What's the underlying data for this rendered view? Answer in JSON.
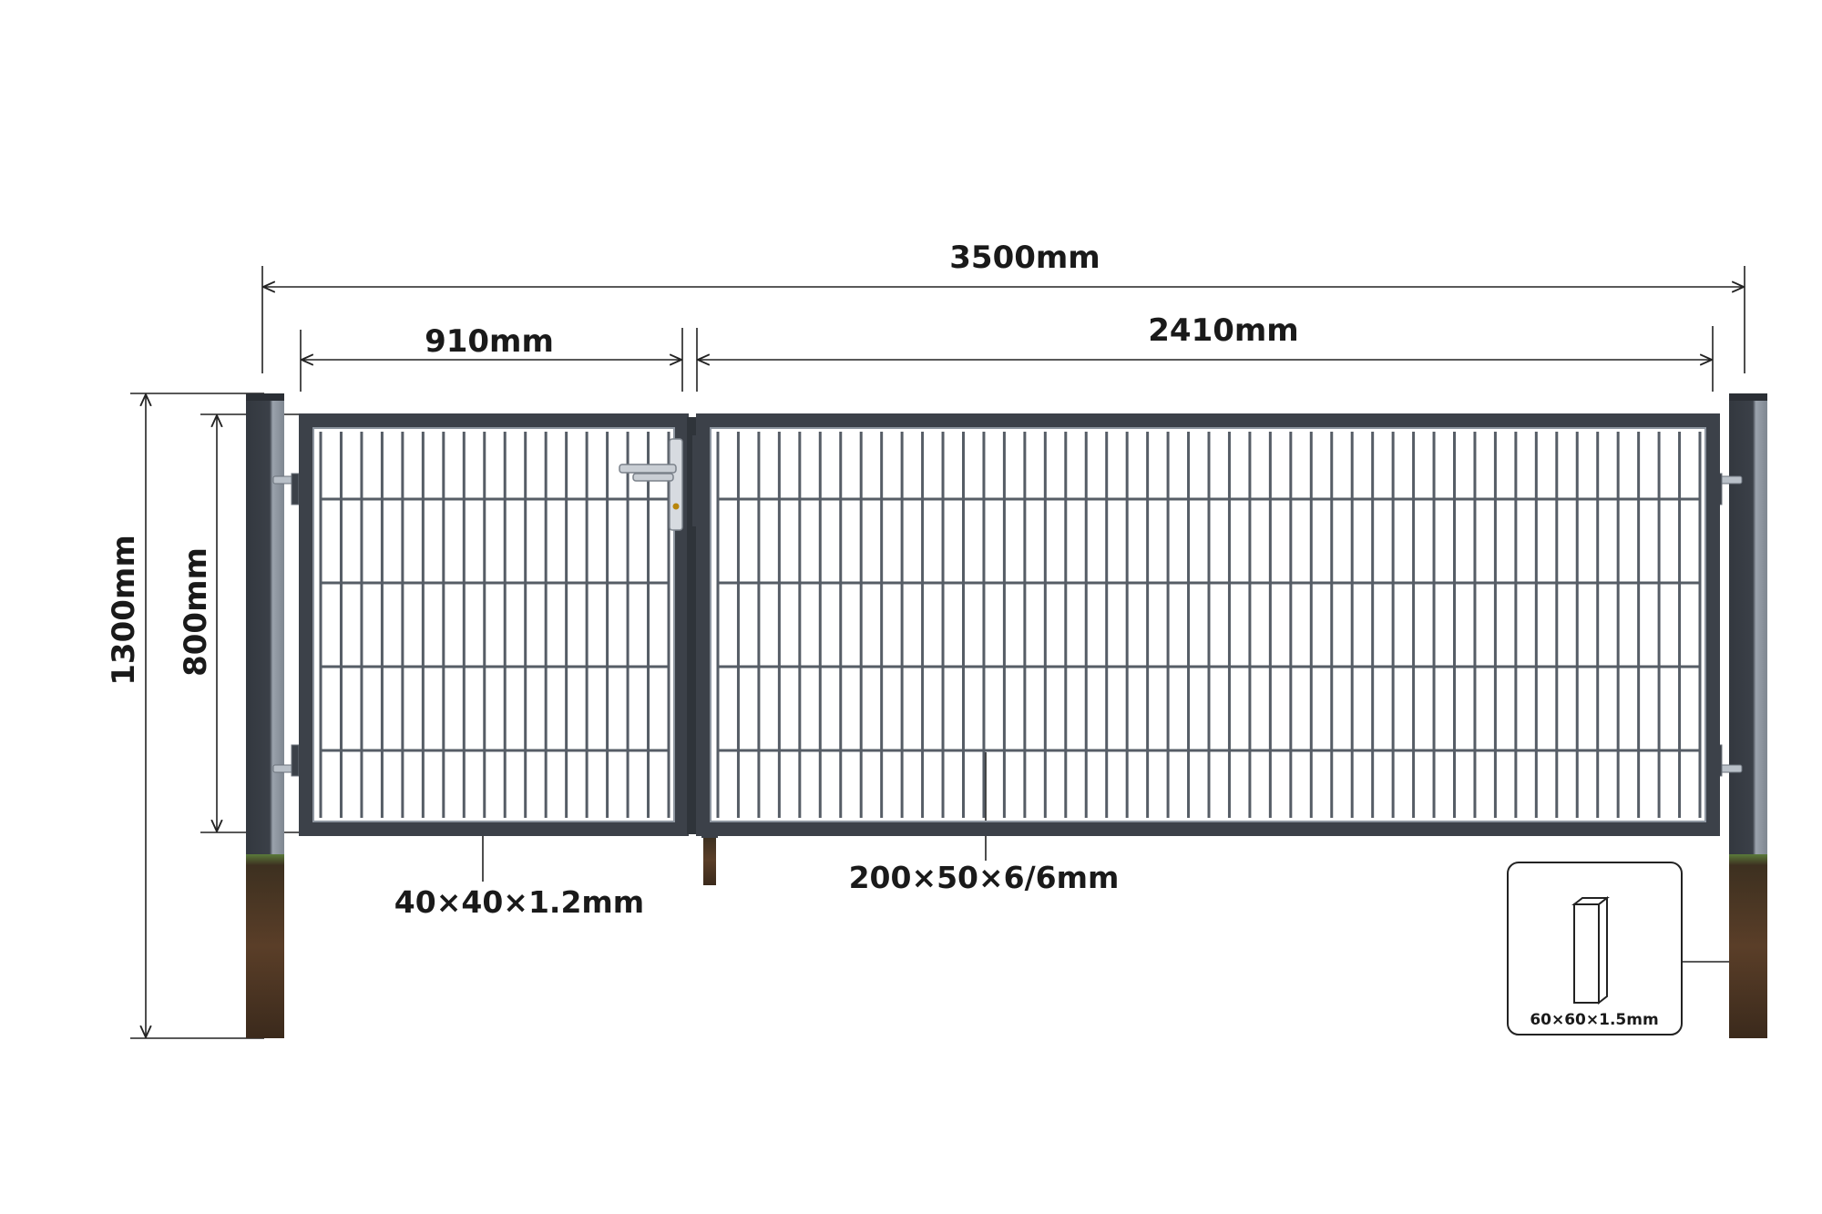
{
  "dimensions": {
    "total_width": "3500mm",
    "small_leaf_width": "910mm",
    "large_leaf_width": "2410mm",
    "total_height": "1300mm",
    "gate_height": "800mm"
  },
  "specs": {
    "frame_profile": "40×40×1.2mm",
    "mesh": "200×50×6/6mm",
    "post_profile": "60×60×1.5mm"
  },
  "colors": {
    "frame": "#3c4149",
    "post": "#3a3f47",
    "post_highlight": "#8f97a1",
    "mesh": "#565d66",
    "soil": "#4a3322"
  }
}
